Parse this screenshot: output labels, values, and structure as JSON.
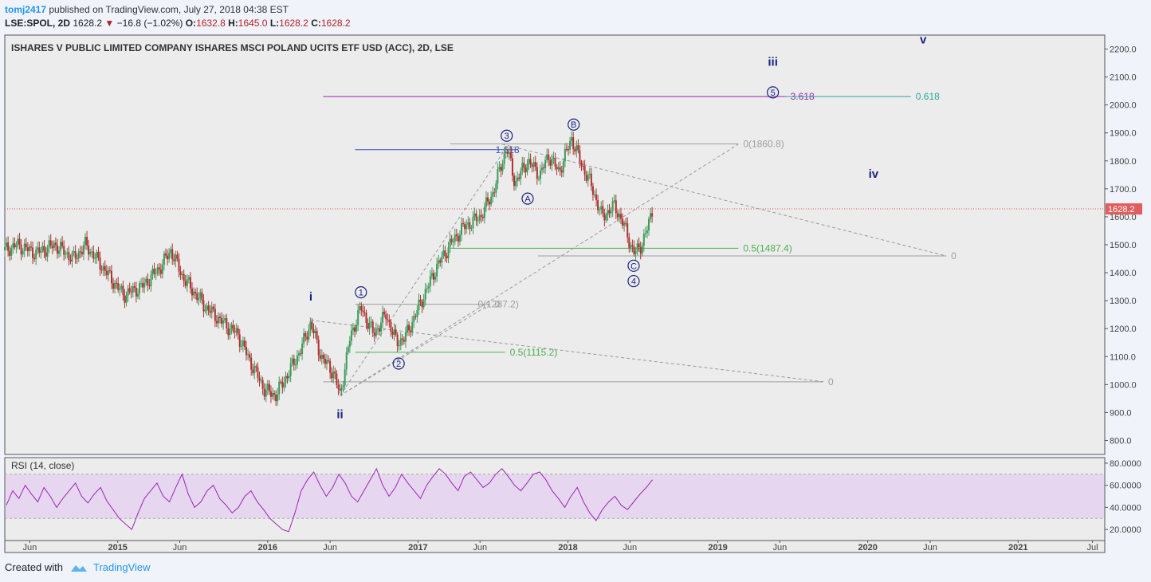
{
  "header": {
    "user": "tomj2417",
    "published_text": " published on TradingView.com, July 27, 2018 04:38 EST",
    "symbol": "LSE:SPOL, 2D",
    "price": "1628.2",
    "change": "−16.8 (−1.02%)",
    "o_label": "O:",
    "o": "1632.8",
    "h_label": "H:",
    "h": "1645.0",
    "l_label": "L:",
    "l": "1628.2",
    "c_label": "C:",
    "c": "1628.2"
  },
  "footer": {
    "created_with": "Created with",
    "brand": "TradingView"
  },
  "colors": {
    "up": "#3a9b5a",
    "down": "#b03030",
    "wave": "#1a237e",
    "fib_green": "#4caf50",
    "fib_gray": "#9e9e9e",
    "rsi": "#9c27b0",
    "rsi_band": "#e6d6f0"
  },
  "chart_data": [
    {
      "type": "candlestick",
      "title": "ISHARES V PUBLIC LIMITED COMPANY ISHARES MSCI POLAND UCITS ETF USD (ACC), 2D, LSE",
      "ylim": [
        750,
        2250
      ],
      "y_ticks": [
        "2200.0",
        "2100.0",
        "2000.0",
        "1900.0",
        "1800.0",
        "1700.0",
        "1600.0",
        "1500.0",
        "1400.0",
        "1300.0",
        "1200.0",
        "1100.0",
        "1000.0",
        "900.0",
        "800.0"
      ],
      "x_ticks": [
        "Jun",
        "2015",
        "Jun",
        "2016",
        "Jun",
        "2017",
        "Jun",
        "2018",
        "Jun",
        "2019",
        "Jun",
        "2020",
        "Jun",
        "2021",
        "Jul"
      ],
      "last_price_label": "1628.2",
      "price_path": [
        [
          "2014-04-01",
          1480
        ],
        [
          "2014-05-01",
          1500
        ],
        [
          "2014-06-15",
          1470
        ],
        [
          "2014-08-01",
          1500
        ],
        [
          "2014-09-15",
          1450
        ],
        [
          "2014-10-15",
          1500
        ],
        [
          "2014-11-15",
          1440
        ],
        [
          "2014-12-15",
          1380
        ],
        [
          "2015-01-15",
          1320
        ],
        [
          "2015-03-01",
          1350
        ],
        [
          "2015-04-15",
          1420
        ],
        [
          "2015-05-10",
          1480
        ],
        [
          "2015-06-10",
          1380
        ],
        [
          "2015-08-01",
          1280
        ],
        [
          "2015-09-15",
          1220
        ],
        [
          "2015-10-20",
          1180
        ],
        [
          "2015-11-20",
          1080
        ],
        [
          "2015-12-25",
          980
        ],
        [
          "2016-01-20",
          960
        ],
        [
          "2016-02-20",
          1040
        ],
        [
          "2016-03-20",
          1120
        ],
        [
          "2016-04-15",
          1220
        ],
        [
          "2016-05-10",
          1100
        ],
        [
          "2016-06-10",
          1040
        ],
        [
          "2016-06-25",
          960
        ],
        [
          "2016-07-20",
          1170
        ],
        [
          "2016-08-15",
          1275
        ],
        [
          "2016-09-15",
          1180
        ],
        [
          "2016-10-15",
          1250
        ],
        [
          "2016-11-10",
          1150
        ],
        [
          "2016-12-01",
          1170
        ],
        [
          "2017-01-10",
          1300
        ],
        [
          "2017-02-15",
          1420
        ],
        [
          "2017-03-20",
          1500
        ],
        [
          "2017-04-20",
          1560
        ],
        [
          "2017-06-01",
          1600
        ],
        [
          "2017-07-01",
          1680
        ],
        [
          "2017-08-05",
          1850
        ],
        [
          "2017-08-25",
          1720
        ],
        [
          "2017-09-25",
          1800
        ],
        [
          "2017-10-25",
          1750
        ],
        [
          "2017-11-15",
          1820
        ],
        [
          "2017-12-10",
          1760
        ],
        [
          "2018-01-10",
          1880
        ],
        [
          "2018-02-05",
          1780
        ],
        [
          "2018-02-25",
          1720
        ],
        [
          "2018-03-25",
          1600
        ],
        [
          "2018-04-25",
          1640
        ],
        [
          "2018-05-20",
          1560
        ],
        [
          "2018-06-10",
          1470
        ],
        [
          "2018-06-25",
          1490
        ],
        [
          "2018-07-10",
          1540
        ],
        [
          "2018-07-26",
          1628
        ]
      ],
      "annotations": {
        "waves": [
          {
            "label": "i",
            "date": "2016-04-15",
            "price": 1300
          },
          {
            "label": "ii",
            "date": "2016-06-25",
            "price": 880
          },
          {
            "label": "iii",
            "date": "2019-05-15",
            "price": 2140
          },
          {
            "label": "iv",
            "date": "2020-01-15",
            "price": 1740
          },
          {
            "label": "v",
            "date": "2020-05-15",
            "price": 2220
          }
        ],
        "circled": [
          {
            "label": "1",
            "date": "2016-08-15",
            "price": 1330
          },
          {
            "label": "2",
            "date": "2016-11-15",
            "price": 1075
          },
          {
            "label": "3",
            "date": "2017-08-05",
            "price": 1890
          },
          {
            "label": "A",
            "date": "2017-09-25",
            "price": 1665
          },
          {
            "label": "B",
            "date": "2018-01-15",
            "price": 1930
          },
          {
            "label": "C",
            "date": "2018-06-10",
            "price": 1425
          },
          {
            "label": "4",
            "date": "2018-06-10",
            "price": 1370
          },
          {
            "label": "5",
            "date": "2019-05-15",
            "price": 2045
          }
        ],
        "levels": [
          {
            "label": "0(1860.8)",
            "price": 1860.8,
            "start": "2017-03-20",
            "end": "2019-02-20",
            "color": "gray"
          },
          {
            "label": "0.5(1487.4)",
            "price": 1487.4,
            "start": "2017-03-20",
            "end": "2019-02-20",
            "color": "green"
          },
          {
            "label": "0",
            "price": 1460,
            "start": "2017-10-20",
            "end": "2020-07-10",
            "color": "gray"
          },
          {
            "label": "0(1287.2)",
            "price": 1287.2,
            "start": "2016-08-01",
            "end": "2017-05-15",
            "color": "gray"
          },
          {
            "label": "0",
            "price": 1287.2,
            "start": "2017-05-15",
            "end": "2017-06-25",
            "color": "gray"
          },
          {
            "label": "0.5(1115.2)",
            "price": 1115.2,
            "start": "2016-08-01",
            "end": "2017-08-01",
            "color": "green"
          },
          {
            "label": "0",
            "price": 1010,
            "start": "2016-05-15",
            "end": "2019-09-15",
            "color": "gray"
          },
          {
            "label": "1.618",
            "price": 1840,
            "start": "2016-08-01",
            "end": "2017-09-01",
            "color": "blue"
          },
          {
            "label": "3.618",
            "price": 2030,
            "start": "2016-05-15",
            "end": "2019-06-15",
            "color": "purple"
          },
          {
            "label": "0.618",
            "price": 2030,
            "start": "2019-06-15",
            "end": "2020-04-15",
            "color": "teal"
          }
        ]
      }
    },
    {
      "type": "line",
      "title": "RSI (14, close)",
      "ylim": [
        10,
        85
      ],
      "y_ticks": [
        "80.0000",
        "60.0000",
        "40.0000",
        "20.0000"
      ],
      "band": [
        30,
        70
      ],
      "values": [
        42,
        55,
        48,
        60,
        52,
        45,
        58,
        50,
        40,
        48,
        55,
        62,
        50,
        44,
        52,
        58,
        46,
        38,
        30,
        25,
        20,
        35,
        48,
        55,
        62,
        50,
        45,
        58,
        70,
        52,
        40,
        45,
        55,
        60,
        48,
        42,
        35,
        40,
        50,
        55,
        45,
        38,
        30,
        25,
        20,
        18,
        35,
        55,
        65,
        72,
        60,
        50,
        58,
        70,
        62,
        50,
        45,
        55,
        65,
        75,
        60,
        50,
        58,
        70,
        62,
        55,
        48,
        60,
        68,
        75,
        70,
        62,
        55,
        68,
        72,
        65,
        58,
        62,
        70,
        75,
        68,
        60,
        55,
        62,
        70,
        72,
        65,
        55,
        48,
        40,
        50,
        58,
        45,
        35,
        28,
        38,
        45,
        50,
        42,
        38,
        45,
        52,
        58,
        65
      ]
    }
  ]
}
